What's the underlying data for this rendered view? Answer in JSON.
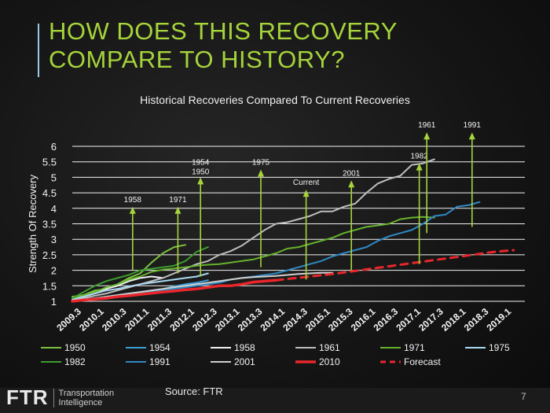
{
  "slide": {
    "title_line1": "HOW DOES THIS RECOVERY",
    "title_line2": "COMPARE TO HISTORY?",
    "source": "Source: FTR",
    "page_number": "7",
    "logo": {
      "mark": "FTR",
      "line1": "Transportation",
      "line2": "Intelligence"
    }
  },
  "chart_data": {
    "type": "line",
    "title": "Historical Recoveries Compared To Current Recoveries",
    "xlabel": "",
    "ylabel": "Strength Of Recovery",
    "ylim": [
      1,
      6
    ],
    "yticks": [
      "1",
      "1.5",
      "2",
      "2.5",
      "3",
      "3.5",
      "4",
      "4.5",
      "5",
      "5.5",
      "6"
    ],
    "ytick_values": [
      1,
      1.5,
      2,
      2.5,
      3,
      3.5,
      4,
      4.5,
      5,
      5.5,
      6
    ],
    "xticks": [
      "2009.3",
      "2010.1",
      "2010.3",
      "2011.1",
      "2011.3",
      "2012.1",
      "2012.3",
      "2013.1",
      "2013.3",
      "2014.1",
      "2014.3",
      "2015.1",
      "2015.3",
      "2016.1",
      "2016.3",
      "2017.1",
      "2017.3",
      "2018.1",
      "2018.3",
      "2019.1"
    ],
    "x_quarters_total": 40,
    "grid": true,
    "series": [
      {
        "name": "1950",
        "color": "#7cc142",
        "dash": false,
        "width": 2,
        "values": [
          1.15,
          1.2,
          1.35,
          1.4,
          1.55,
          1.75,
          1.9,
          2.25,
          2.55,
          2.75,
          2.82
        ]
      },
      {
        "name": "1954",
        "color": "#3aa0d8",
        "dash": false,
        "width": 2,
        "values": [
          1.02,
          1.06,
          1.1,
          1.15,
          1.2,
          1.25,
          1.3,
          1.35,
          1.4,
          1.48,
          1.55,
          1.6,
          1.68
        ]
      },
      {
        "name": "1958",
        "color": "#f2f2f2",
        "dash": false,
        "width": 2,
        "values": [
          1.05,
          1.2,
          1.3,
          1.4,
          1.5,
          1.65,
          1.75,
          1.8,
          1.75
        ]
      },
      {
        "name": "1961",
        "color": "#bdbdbd",
        "dash": false,
        "width": 2,
        "values": [
          1.05,
          1.1,
          1.18,
          1.25,
          1.35,
          1.45,
          1.55,
          1.65,
          1.75,
          1.9,
          2.05,
          2.2,
          2.3,
          2.5,
          2.62,
          2.8,
          3.05,
          3.3,
          3.5,
          3.55,
          3.65,
          3.75,
          3.9,
          3.9,
          4.05,
          4.15,
          4.5,
          4.8,
          4.95,
          5.05,
          5.4,
          5.45,
          5.58
        ]
      },
      {
        "name": "1971",
        "color": "#66b22e",
        "dash": false,
        "width": 2,
        "values": [
          1.1,
          1.2,
          1.3,
          1.45,
          1.55,
          1.7,
          1.8,
          1.95,
          2.02,
          2.06,
          2.1,
          2.15,
          2.18,
          2.2,
          2.25,
          2.3,
          2.35,
          2.45,
          2.55,
          2.7,
          2.75,
          2.85,
          2.95,
          3.05,
          3.2,
          3.3,
          3.4,
          3.45,
          3.5,
          3.65,
          3.7,
          3.72,
          3.7
        ]
      },
      {
        "name": "1975",
        "color": "#a9d8f2",
        "dash": false,
        "width": 2,
        "values": [
          1.05,
          1.15,
          1.25,
          1.35,
          1.4,
          1.48,
          1.55,
          1.6,
          1.65,
          1.7,
          1.75,
          1.8,
          1.9
        ]
      },
      {
        "name": "1982",
        "color": "#3d9b2f",
        "dash": false,
        "width": 2,
        "values": [
          1.1,
          1.3,
          1.5,
          1.65,
          1.75,
          1.85,
          2.0,
          2.05,
          2.1,
          2.15,
          2.3,
          2.6,
          2.75
        ]
      },
      {
        "name": "1991",
        "color": "#2f89c4",
        "dash": false,
        "width": 2,
        "values": [
          1.02,
          1.05,
          1.1,
          1.12,
          1.15,
          1.2,
          1.25,
          1.3,
          1.35,
          1.4,
          1.45,
          1.5,
          1.55,
          1.6,
          1.7,
          1.75,
          1.8,
          1.85,
          1.9,
          2.0,
          2.1,
          2.2,
          2.3,
          2.45,
          2.55,
          2.65,
          2.75,
          2.95,
          3.1,
          3.2,
          3.3,
          3.5,
          3.75,
          3.8,
          4.05,
          4.1,
          4.2
        ]
      },
      {
        "name": "2001",
        "color": "#d0d0d0",
        "dash": false,
        "width": 2,
        "values": [
          1.03,
          1.06,
          1.1,
          1.15,
          1.2,
          1.25,
          1.3,
          1.35,
          1.4,
          1.45,
          1.5,
          1.55,
          1.6,
          1.65,
          1.7,
          1.75,
          1.78,
          1.8,
          1.82,
          1.85,
          1.88,
          1.9,
          1.92,
          1.92
        ]
      },
      {
        "name": "2010",
        "color": "#e8262b",
        "dash": false,
        "width": 3.5,
        "values": [
          1.0,
          1.04,
          1.07,
          1.1,
          1.15,
          1.18,
          1.22,
          1.26,
          1.3,
          1.33,
          1.37,
          1.4,
          1.45,
          1.5,
          1.5,
          1.55,
          1.62,
          1.65,
          1.68
        ]
      },
      {
        "name": "Forecast",
        "color": "#e8262b",
        "dash": true,
        "width": 3,
        "start_index": 18,
        "values": [
          1.68,
          1.72,
          1.76,
          1.8,
          1.84,
          1.88,
          1.93,
          1.98,
          2.03,
          2.08,
          2.13,
          2.18,
          2.23,
          2.28,
          2.33,
          2.38,
          2.43,
          2.48,
          2.53,
          2.58,
          2.62,
          2.65
        ]
      }
    ],
    "annotations": [
      {
        "label": "1958",
        "index": 8,
        "y_from": 2.0,
        "y_to": 4.0
      },
      {
        "label": "1971",
        "index": 14,
        "y_from": 1.9,
        "y_to": 4.0
      },
      {
        "label": "1954",
        "index": 17,
        "y_from": null,
        "y_to": null
      },
      {
        "label": "1950",
        "index": 17,
        "y_from": 1.8,
        "y_to": 4.95
      },
      {
        "label": "1975",
        "index": 25,
        "y_from": 2.1,
        "y_to": 5.2
      },
      {
        "label": "Current",
        "index": 31,
        "y_from": 1.7,
        "y_to": 4.55
      },
      {
        "label": "2001",
        "index": 37,
        "y_from": 2.0,
        "y_to": 4.85
      },
      {
        "label": "1982",
        "index": 46,
        "y_from": 2.2,
        "y_to": 5.4
      },
      {
        "label": "1961",
        "index": 47,
        "y_from": 3.2,
        "y_to": 6.4
      },
      {
        "label": "1991",
        "index": 53,
        "y_from": 3.4,
        "y_to": 6.4
      }
    ],
    "legend": {
      "placement": "bottom",
      "rows": [
        [
          "1950",
          "1954",
          "1958",
          "1961",
          "1971",
          "1975"
        ],
        [
          "1982",
          "1991",
          "2001",
          "2010",
          "Forecast"
        ]
      ]
    }
  }
}
